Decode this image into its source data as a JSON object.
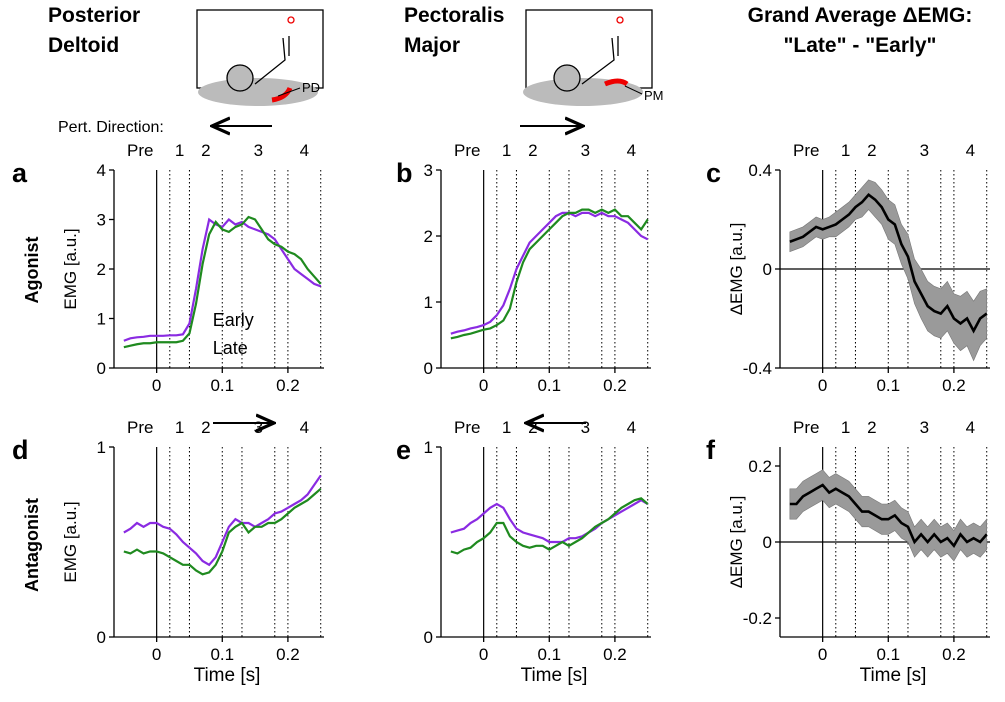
{
  "figure": {
    "columns": [
      [
        "Posterior",
        "Deltoid"
      ],
      [
        "Pectoralis",
        "Major"
      ],
      [
        "Grand Average ΔEMG:",
        "\"Late\" - \"Early\""
      ]
    ],
    "rows": [
      "Agonist",
      "Antagonist"
    ],
    "pert_direction": "Pert. Direction:",
    "muscles": [
      "PD",
      "PM"
    ]
  },
  "onset": 0,
  "epochs": [
    {
      "label": "Pre",
      "start": -0.05,
      "end": 0
    },
    {
      "label": "1",
      "start": 0.02,
      "end": 0.05
    },
    {
      "label": "2",
      "start": 0.05,
      "end": 0.1
    },
    {
      "label": "3",
      "start": 0.13,
      "end": 0.18
    },
    {
      "label": "4",
      "start": 0.2,
      "end": 0.25
    }
  ],
  "chart_data": [
    {
      "type": "line",
      "label": "a",
      "ylabel": "EMG [a.u.]",
      "xlim": [
        -0.065,
        0.255
      ],
      "xticks": [
        0,
        0.1,
        0.2
      ],
      "ylim": [
        0,
        4
      ],
      "yticks": [
        0,
        1,
        2,
        3,
        4
      ],
      "legend": "lower center",
      "x": [
        -0.05,
        -0.04,
        -0.03,
        -0.02,
        -0.01,
        0,
        0.01,
        0.02,
        0.03,
        0.04,
        0.05,
        0.06,
        0.07,
        0.08,
        0.09,
        0.1,
        0.11,
        0.12,
        0.13,
        0.14,
        0.15,
        0.16,
        0.17,
        0.18,
        0.19,
        0.2,
        0.21,
        0.22,
        0.23,
        0.24,
        0.25
      ],
      "series": [
        {
          "name": "Early",
          "color": "#8a2be2",
          "values": [
            0.55,
            0.6,
            0.62,
            0.63,
            0.65,
            0.65,
            0.65,
            0.66,
            0.66,
            0.68,
            0.9,
            1.6,
            2.4,
            3.0,
            2.9,
            2.85,
            3.0,
            2.9,
            2.95,
            2.85,
            2.8,
            2.75,
            2.7,
            2.6,
            2.4,
            2.2,
            2.0,
            1.9,
            1.8,
            1.7,
            1.65
          ]
        },
        {
          "name": "Late",
          "color": "#1f8a1f",
          "values": [
            0.42,
            0.45,
            0.48,
            0.5,
            0.5,
            0.52,
            0.52,
            0.52,
            0.52,
            0.55,
            0.7,
            1.3,
            2.1,
            2.7,
            2.95,
            2.8,
            2.75,
            2.85,
            2.9,
            3.05,
            3.0,
            2.8,
            2.6,
            2.5,
            2.45,
            2.35,
            2.3,
            2.2,
            2.0,
            1.85,
            1.7
          ]
        }
      ]
    },
    {
      "type": "line",
      "label": "b",
      "xlim": [
        -0.065,
        0.255
      ],
      "xticks": [
        0,
        0.1,
        0.2
      ],
      "ylim": [
        0,
        3
      ],
      "yticks": [
        0,
        1,
        2,
        3
      ],
      "x": [
        -0.05,
        -0.04,
        -0.03,
        -0.02,
        -0.01,
        0,
        0.01,
        0.02,
        0.03,
        0.04,
        0.05,
        0.06,
        0.07,
        0.08,
        0.09,
        0.1,
        0.11,
        0.12,
        0.13,
        0.14,
        0.15,
        0.16,
        0.17,
        0.18,
        0.19,
        0.2,
        0.21,
        0.22,
        0.23,
        0.24,
        0.25
      ],
      "series": [
        {
          "color": "#8a2be2",
          "values": [
            0.52,
            0.55,
            0.57,
            0.6,
            0.62,
            0.65,
            0.7,
            0.8,
            0.95,
            1.2,
            1.5,
            1.7,
            1.9,
            2.0,
            2.1,
            2.2,
            2.3,
            2.35,
            2.35,
            2.3,
            2.35,
            2.35,
            2.3,
            2.35,
            2.3,
            2.3,
            2.25,
            2.2,
            2.1,
            2.0,
            1.95
          ]
        },
        {
          "color": "#1f8a1f",
          "values": [
            0.45,
            0.47,
            0.5,
            0.52,
            0.55,
            0.58,
            0.6,
            0.65,
            0.72,
            0.9,
            1.3,
            1.6,
            1.8,
            1.9,
            2.0,
            2.1,
            2.2,
            2.3,
            2.35,
            2.35,
            2.4,
            2.4,
            2.35,
            2.4,
            2.35,
            2.4,
            2.3,
            2.3,
            2.2,
            2.1,
            2.25
          ]
        }
      ]
    },
    {
      "type": "band",
      "label": "c",
      "ylabel": "ΔEMG [a.u.]",
      "xlim": [
        -0.065,
        0.255
      ],
      "xticks": [
        0,
        0.1,
        0.2
      ],
      "ylim": [
        -0.4,
        0.4
      ],
      "yticks": [
        -0.4,
        0,
        0.4
      ],
      "zero_line": true,
      "color": "#000000",
      "band_color": "#9a9a9a",
      "x": [
        -0.05,
        -0.04,
        -0.03,
        -0.02,
        -0.01,
        0,
        0.01,
        0.02,
        0.03,
        0.04,
        0.05,
        0.06,
        0.07,
        0.08,
        0.09,
        0.1,
        0.11,
        0.12,
        0.13,
        0.14,
        0.15,
        0.16,
        0.17,
        0.18,
        0.19,
        0.2,
        0.21,
        0.22,
        0.23,
        0.24,
        0.25
      ],
      "values": [
        0.11,
        0.12,
        0.13,
        0.15,
        0.17,
        0.16,
        0.17,
        0.18,
        0.2,
        0.22,
        0.25,
        0.27,
        0.3,
        0.28,
        0.25,
        0.2,
        0.18,
        0.1,
        0.05,
        -0.05,
        -0.1,
        -0.15,
        -0.17,
        -0.18,
        -0.15,
        -0.2,
        -0.22,
        -0.2,
        -0.25,
        -0.2,
        -0.18
      ],
      "error": [
        0.04,
        0.04,
        0.04,
        0.04,
        0.04,
        0.04,
        0.04,
        0.05,
        0.05,
        0.05,
        0.05,
        0.06,
        0.06,
        0.07,
        0.07,
        0.08,
        0.08,
        0.08,
        0.09,
        0.09,
        0.1,
        0.1,
        0.1,
        0.1,
        0.1,
        0.1,
        0.11,
        0.11,
        0.12,
        0.11,
        0.1
      ]
    },
    {
      "type": "line",
      "label": "d",
      "ylabel": "EMG [a.u.]",
      "xlabel": "Time [s]",
      "xlim": [
        -0.065,
        0.255
      ],
      "xticks": [
        0,
        0.1,
        0.2
      ],
      "ylim": [
        0,
        1
      ],
      "yticks": [
        0,
        1
      ],
      "x": [
        -0.05,
        -0.04,
        -0.03,
        -0.02,
        -0.01,
        0,
        0.01,
        0.02,
        0.03,
        0.04,
        0.05,
        0.06,
        0.07,
        0.08,
        0.09,
        0.1,
        0.11,
        0.12,
        0.13,
        0.14,
        0.15,
        0.16,
        0.17,
        0.18,
        0.19,
        0.2,
        0.21,
        0.22,
        0.23,
        0.24,
        0.25
      ],
      "series": [
        {
          "color": "#8a2be2",
          "values": [
            0.55,
            0.57,
            0.6,
            0.58,
            0.6,
            0.6,
            0.58,
            0.57,
            0.54,
            0.5,
            0.47,
            0.44,
            0.4,
            0.38,
            0.42,
            0.5,
            0.58,
            0.62,
            0.6,
            0.6,
            0.58,
            0.6,
            0.62,
            0.65,
            0.66,
            0.68,
            0.7,
            0.72,
            0.75,
            0.8,
            0.85
          ]
        },
        {
          "color": "#1f8a1f",
          "values": [
            0.45,
            0.44,
            0.46,
            0.44,
            0.45,
            0.45,
            0.44,
            0.42,
            0.4,
            0.38,
            0.38,
            0.35,
            0.33,
            0.34,
            0.38,
            0.45,
            0.55,
            0.58,
            0.6,
            0.55,
            0.58,
            0.58,
            0.6,
            0.6,
            0.62,
            0.65,
            0.68,
            0.7,
            0.72,
            0.75,
            0.78
          ]
        }
      ]
    },
    {
      "type": "line",
      "label": "e",
      "xlabel": "Time [s]",
      "xlim": [
        -0.065,
        0.255
      ],
      "xticks": [
        0,
        0.1,
        0.2
      ],
      "ylim": [
        0,
        1
      ],
      "yticks": [
        0,
        1
      ],
      "x": [
        -0.05,
        -0.04,
        -0.03,
        -0.02,
        -0.01,
        0,
        0.01,
        0.02,
        0.03,
        0.04,
        0.05,
        0.06,
        0.07,
        0.08,
        0.09,
        0.1,
        0.11,
        0.12,
        0.13,
        0.14,
        0.15,
        0.16,
        0.17,
        0.18,
        0.19,
        0.2,
        0.21,
        0.22,
        0.23,
        0.24,
        0.25
      ],
      "series": [
        {
          "color": "#8a2be2",
          "values": [
            0.55,
            0.56,
            0.57,
            0.6,
            0.62,
            0.65,
            0.68,
            0.7,
            0.68,
            0.62,
            0.57,
            0.55,
            0.54,
            0.53,
            0.52,
            0.5,
            0.5,
            0.5,
            0.52,
            0.52,
            0.53,
            0.55,
            0.57,
            0.6,
            0.62,
            0.64,
            0.66,
            0.68,
            0.7,
            0.72,
            0.7
          ]
        },
        {
          "color": "#1f8a1f",
          "values": [
            0.45,
            0.44,
            0.46,
            0.47,
            0.5,
            0.52,
            0.55,
            0.6,
            0.6,
            0.53,
            0.5,
            0.48,
            0.47,
            0.48,
            0.48,
            0.46,
            0.48,
            0.5,
            0.48,
            0.5,
            0.52,
            0.55,
            0.58,
            0.6,
            0.62,
            0.65,
            0.68,
            0.7,
            0.72,
            0.73,
            0.7
          ]
        }
      ]
    },
    {
      "type": "band",
      "label": "f",
      "ylabel": "ΔEMG [a.u.]",
      "xlabel": "Time [s]",
      "xlim": [
        -0.065,
        0.255
      ],
      "xticks": [
        0,
        0.1,
        0.2
      ],
      "ylim": [
        -0.25,
        0.25
      ],
      "yticks": [
        -0.2,
        0,
        0.2
      ],
      "zero_line": true,
      "color": "#000000",
      "band_color": "#9a9a9a",
      "x": [
        -0.05,
        -0.04,
        -0.03,
        -0.02,
        -0.01,
        0,
        0.01,
        0.02,
        0.03,
        0.04,
        0.05,
        0.06,
        0.07,
        0.08,
        0.09,
        0.1,
        0.11,
        0.12,
        0.13,
        0.14,
        0.15,
        0.16,
        0.17,
        0.18,
        0.19,
        0.2,
        0.21,
        0.22,
        0.23,
        0.24,
        0.25
      ],
      "values": [
        0.1,
        0.1,
        0.12,
        0.13,
        0.14,
        0.15,
        0.13,
        0.14,
        0.13,
        0.12,
        0.1,
        0.08,
        0.08,
        0.07,
        0.06,
        0.06,
        0.07,
        0.05,
        0.04,
        0.0,
        0.02,
        0.0,
        0.02,
        0.0,
        0.01,
        -0.01,
        0.02,
        0.0,
        0.01,
        0.0,
        0.02
      ],
      "error": [
        0.04,
        0.04,
        0.04,
        0.04,
        0.04,
        0.04,
        0.04,
        0.04,
        0.04,
        0.04,
        0.04,
        0.04,
        0.04,
        0.04,
        0.04,
        0.04,
        0.04,
        0.04,
        0.04,
        0.04,
        0.04,
        0.04,
        0.04,
        0.04,
        0.04,
        0.04,
        0.04,
        0.04,
        0.04,
        0.04,
        0.04
      ]
    }
  ]
}
